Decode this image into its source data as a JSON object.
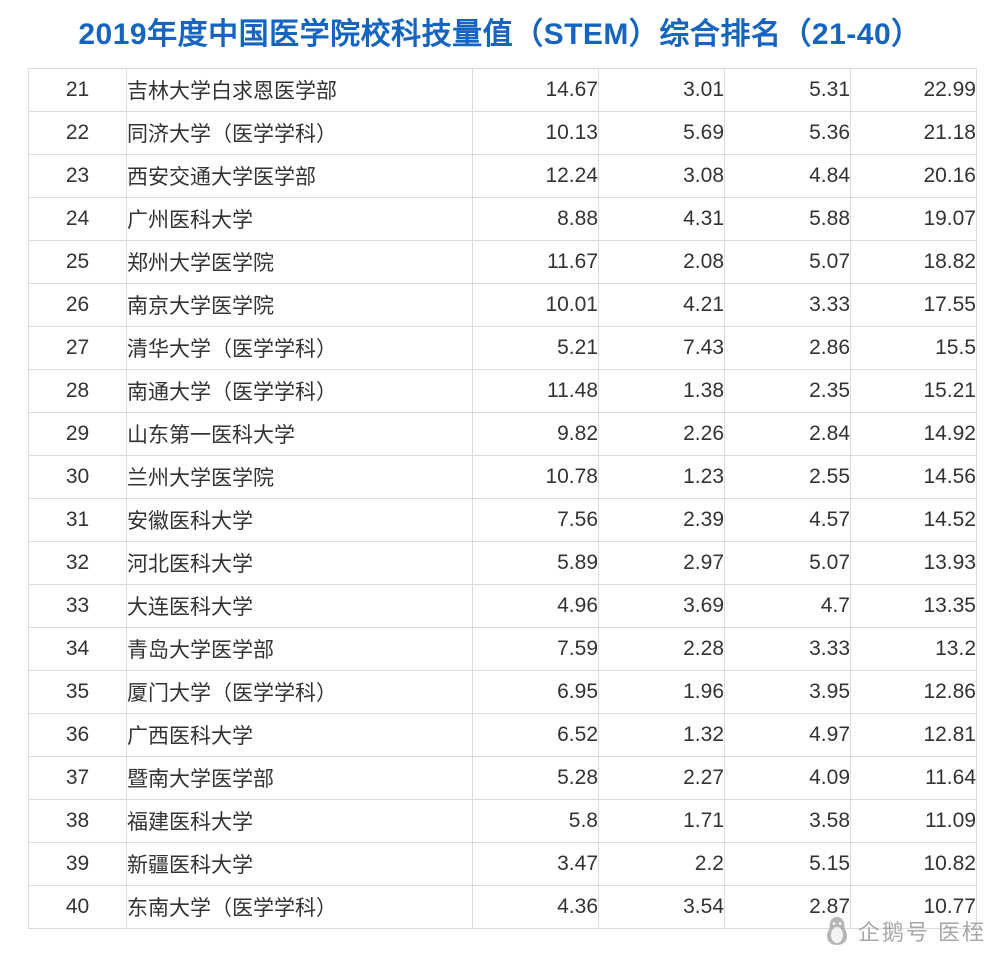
{
  "title": "2019年度中国医学院校科技量值（STEM）综合排名（21-40）",
  "colors": {
    "title_blue": "#1565C0",
    "border_gray": "#dcdcdc",
    "text": "#333333",
    "watermark_gray": "#9a9a9a"
  },
  "watermark": {
    "icon": "penguin-icon",
    "label": "企鹅号 医桎"
  },
  "table": {
    "rows": [
      {
        "rank": "21",
        "name": "吉林大学白求恩医学部",
        "values": [
          "14.67",
          "3.01",
          "5.31",
          "22.99"
        ]
      },
      {
        "rank": "22",
        "name": "同济大学（医学学科）",
        "values": [
          "10.13",
          "5.69",
          "5.36",
          "21.18"
        ]
      },
      {
        "rank": "23",
        "name": "西安交通大学医学部",
        "values": [
          "12.24",
          "3.08",
          "4.84",
          "20.16"
        ]
      },
      {
        "rank": "24",
        "name": "广州医科大学",
        "values": [
          "8.88",
          "4.31",
          "5.88",
          "19.07"
        ]
      },
      {
        "rank": "25",
        "name": "郑州大学医学院",
        "values": [
          "11.67",
          "2.08",
          "5.07",
          "18.82"
        ]
      },
      {
        "rank": "26",
        "name": "南京大学医学院",
        "values": [
          "10.01",
          "4.21",
          "3.33",
          "17.55"
        ]
      },
      {
        "rank": "27",
        "name": "清华大学（医学学科）",
        "values": [
          "5.21",
          "7.43",
          "2.86",
          "15.5"
        ]
      },
      {
        "rank": "28",
        "name": "南通大学（医学学科）",
        "values": [
          "11.48",
          "1.38",
          "2.35",
          "15.21"
        ]
      },
      {
        "rank": "29",
        "name": "山东第一医科大学",
        "values": [
          "9.82",
          "2.26",
          "2.84",
          "14.92"
        ]
      },
      {
        "rank": "30",
        "name": "兰州大学医学院",
        "values": [
          "10.78",
          "1.23",
          "2.55",
          "14.56"
        ]
      },
      {
        "rank": "31",
        "name": "安徽医科大学",
        "values": [
          "7.56",
          "2.39",
          "4.57",
          "14.52"
        ]
      },
      {
        "rank": "32",
        "name": "河北医科大学",
        "values": [
          "5.89",
          "2.97",
          "5.07",
          "13.93"
        ]
      },
      {
        "rank": "33",
        "name": "大连医科大学",
        "values": [
          "4.96",
          "3.69",
          "4.7",
          "13.35"
        ]
      },
      {
        "rank": "34",
        "name": "青岛大学医学部",
        "values": [
          "7.59",
          "2.28",
          "3.33",
          "13.2"
        ]
      },
      {
        "rank": "35",
        "name": "厦门大学（医学学科）",
        "values": [
          "6.95",
          "1.96",
          "3.95",
          "12.86"
        ]
      },
      {
        "rank": "36",
        "name": "广西医科大学",
        "values": [
          "6.52",
          "1.32",
          "4.97",
          "12.81"
        ]
      },
      {
        "rank": "37",
        "name": "暨南大学医学部",
        "values": [
          "5.28",
          "2.27",
          "4.09",
          "11.64"
        ]
      },
      {
        "rank": "38",
        "name": "福建医科大学",
        "values": [
          "5.8",
          "1.71",
          "3.58",
          "11.09"
        ]
      },
      {
        "rank": "39",
        "name": "新疆医科大学",
        "values": [
          "3.47",
          "2.2",
          "5.15",
          "10.82"
        ]
      },
      {
        "rank": "40",
        "name": "东南大学（医学学科）",
        "values": [
          "4.36",
          "3.54",
          "2.87",
          "10.77"
        ]
      }
    ]
  }
}
